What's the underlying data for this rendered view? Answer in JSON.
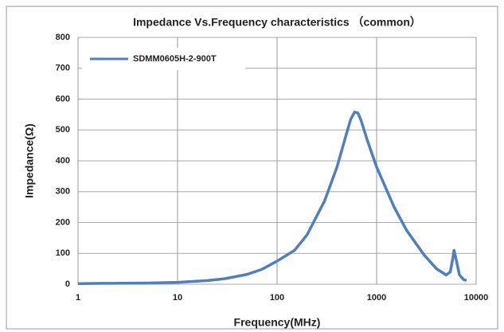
{
  "chart_data": {
    "type": "line",
    "title": "Impedance Vs.Frequency characteristics （common）",
    "xlabel": "Frequency(MHz)",
    "ylabel": "Impedance(Ω)",
    "xscale": "log",
    "grid": true,
    "legend": "upper left",
    "xlim": [
      1,
      10000
    ],
    "xticks": [
      1,
      10,
      100,
      1000,
      10000
    ],
    "ylim": [
      0,
      800
    ],
    "yticks": [
      0,
      100,
      200,
      300,
      400,
      500,
      600,
      700,
      800
    ],
    "series": [
      {
        "name": "SDMM0605H-2-900T",
        "color": "#4f7fbd",
        "x": [
          1,
          2,
          5,
          10,
          20,
          30,
          50,
          70,
          100,
          150,
          200,
          300,
          400,
          500,
          550,
          600,
          650,
          700,
          800,
          1000,
          1500,
          2000,
          3000,
          4000,
          5000,
          5500,
          5800,
          6000,
          6300,
          6800,
          7500,
          8000
        ],
        "values": [
          2,
          3,
          4,
          6,
          12,
          18,
          32,
          48,
          75,
          110,
          160,
          270,
          380,
          490,
          535,
          558,
          555,
          530,
          470,
          380,
          250,
          175,
          95,
          50,
          30,
          40,
          80,
          110,
          80,
          30,
          15,
          12
        ]
      }
    ]
  }
}
